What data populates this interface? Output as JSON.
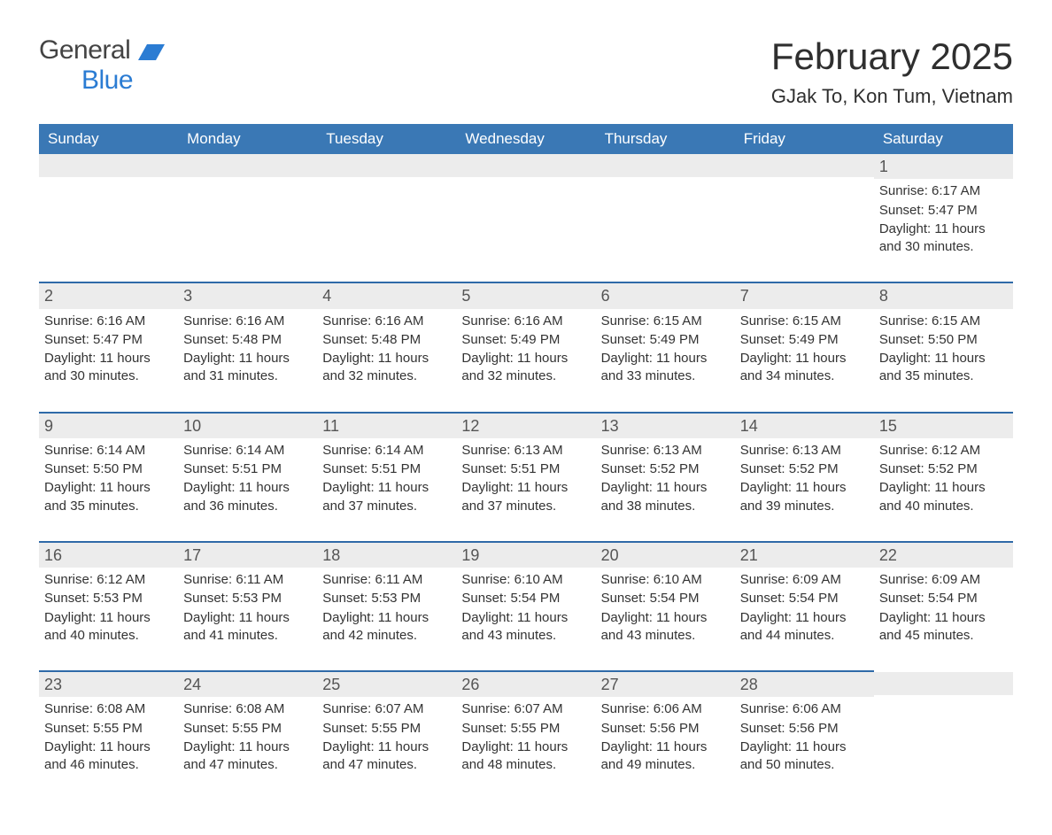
{
  "brand": {
    "part1": "General",
    "part2": "Blue"
  },
  "title": "February 2025",
  "subtitle": "GJak To, Kon Tum, Vietnam",
  "colors": {
    "header_bg": "#3a78b5",
    "header_text": "#ffffff",
    "daynum_bg": "#ececec",
    "rule": "#2f6aa8",
    "logo_accent": "#2b7cd3"
  },
  "days_of_week": [
    "Sunday",
    "Monday",
    "Tuesday",
    "Wednesday",
    "Thursday",
    "Friday",
    "Saturday"
  ],
  "weeks": [
    [
      null,
      null,
      null,
      null,
      null,
      null,
      {
        "n": 1,
        "sunrise": "Sunrise: 6:17 AM",
        "sunset": "Sunset: 5:47 PM",
        "daylight": "Daylight: 11 hours and 30 minutes."
      }
    ],
    [
      {
        "n": 2,
        "sunrise": "Sunrise: 6:16 AM",
        "sunset": "Sunset: 5:47 PM",
        "daylight": "Daylight: 11 hours and 30 minutes."
      },
      {
        "n": 3,
        "sunrise": "Sunrise: 6:16 AM",
        "sunset": "Sunset: 5:48 PM",
        "daylight": "Daylight: 11 hours and 31 minutes."
      },
      {
        "n": 4,
        "sunrise": "Sunrise: 6:16 AM",
        "sunset": "Sunset: 5:48 PM",
        "daylight": "Daylight: 11 hours and 32 minutes."
      },
      {
        "n": 5,
        "sunrise": "Sunrise: 6:16 AM",
        "sunset": "Sunset: 5:49 PM",
        "daylight": "Daylight: 11 hours and 32 minutes."
      },
      {
        "n": 6,
        "sunrise": "Sunrise: 6:15 AM",
        "sunset": "Sunset: 5:49 PM",
        "daylight": "Daylight: 11 hours and 33 minutes."
      },
      {
        "n": 7,
        "sunrise": "Sunrise: 6:15 AM",
        "sunset": "Sunset: 5:49 PM",
        "daylight": "Daylight: 11 hours and 34 minutes."
      },
      {
        "n": 8,
        "sunrise": "Sunrise: 6:15 AM",
        "sunset": "Sunset: 5:50 PM",
        "daylight": "Daylight: 11 hours and 35 minutes."
      }
    ],
    [
      {
        "n": 9,
        "sunrise": "Sunrise: 6:14 AM",
        "sunset": "Sunset: 5:50 PM",
        "daylight": "Daylight: 11 hours and 35 minutes."
      },
      {
        "n": 10,
        "sunrise": "Sunrise: 6:14 AM",
        "sunset": "Sunset: 5:51 PM",
        "daylight": "Daylight: 11 hours and 36 minutes."
      },
      {
        "n": 11,
        "sunrise": "Sunrise: 6:14 AM",
        "sunset": "Sunset: 5:51 PM",
        "daylight": "Daylight: 11 hours and 37 minutes."
      },
      {
        "n": 12,
        "sunrise": "Sunrise: 6:13 AM",
        "sunset": "Sunset: 5:51 PM",
        "daylight": "Daylight: 11 hours and 37 minutes."
      },
      {
        "n": 13,
        "sunrise": "Sunrise: 6:13 AM",
        "sunset": "Sunset: 5:52 PM",
        "daylight": "Daylight: 11 hours and 38 minutes."
      },
      {
        "n": 14,
        "sunrise": "Sunrise: 6:13 AM",
        "sunset": "Sunset: 5:52 PM",
        "daylight": "Daylight: 11 hours and 39 minutes."
      },
      {
        "n": 15,
        "sunrise": "Sunrise: 6:12 AM",
        "sunset": "Sunset: 5:52 PM",
        "daylight": "Daylight: 11 hours and 40 minutes."
      }
    ],
    [
      {
        "n": 16,
        "sunrise": "Sunrise: 6:12 AM",
        "sunset": "Sunset: 5:53 PM",
        "daylight": "Daylight: 11 hours and 40 minutes."
      },
      {
        "n": 17,
        "sunrise": "Sunrise: 6:11 AM",
        "sunset": "Sunset: 5:53 PM",
        "daylight": "Daylight: 11 hours and 41 minutes."
      },
      {
        "n": 18,
        "sunrise": "Sunrise: 6:11 AM",
        "sunset": "Sunset: 5:53 PM",
        "daylight": "Daylight: 11 hours and 42 minutes."
      },
      {
        "n": 19,
        "sunrise": "Sunrise: 6:10 AM",
        "sunset": "Sunset: 5:54 PM",
        "daylight": "Daylight: 11 hours and 43 minutes."
      },
      {
        "n": 20,
        "sunrise": "Sunrise: 6:10 AM",
        "sunset": "Sunset: 5:54 PM",
        "daylight": "Daylight: 11 hours and 43 minutes."
      },
      {
        "n": 21,
        "sunrise": "Sunrise: 6:09 AM",
        "sunset": "Sunset: 5:54 PM",
        "daylight": "Daylight: 11 hours and 44 minutes."
      },
      {
        "n": 22,
        "sunrise": "Sunrise: 6:09 AM",
        "sunset": "Sunset: 5:54 PM",
        "daylight": "Daylight: 11 hours and 45 minutes."
      }
    ],
    [
      {
        "n": 23,
        "sunrise": "Sunrise: 6:08 AM",
        "sunset": "Sunset: 5:55 PM",
        "daylight": "Daylight: 11 hours and 46 minutes."
      },
      {
        "n": 24,
        "sunrise": "Sunrise: 6:08 AM",
        "sunset": "Sunset: 5:55 PM",
        "daylight": "Daylight: 11 hours and 47 minutes."
      },
      {
        "n": 25,
        "sunrise": "Sunrise: 6:07 AM",
        "sunset": "Sunset: 5:55 PM",
        "daylight": "Daylight: 11 hours and 47 minutes."
      },
      {
        "n": 26,
        "sunrise": "Sunrise: 6:07 AM",
        "sunset": "Sunset: 5:55 PM",
        "daylight": "Daylight: 11 hours and 48 minutes."
      },
      {
        "n": 27,
        "sunrise": "Sunrise: 6:06 AM",
        "sunset": "Sunset: 5:56 PM",
        "daylight": "Daylight: 11 hours and 49 minutes."
      },
      {
        "n": 28,
        "sunrise": "Sunrise: 6:06 AM",
        "sunset": "Sunset: 5:56 PM",
        "daylight": "Daylight: 11 hours and 50 minutes."
      },
      null
    ]
  ]
}
